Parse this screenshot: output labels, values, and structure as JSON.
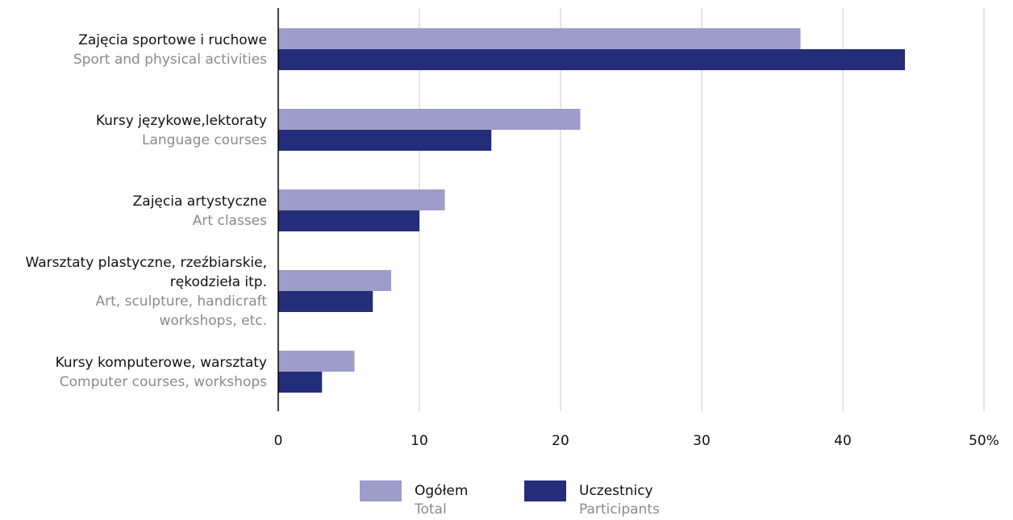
{
  "chart_data": {
    "type": "bar",
    "orientation": "horizontal",
    "categories": [
      {
        "label_pl": [
          "Zajęcia sportowe i ruchowe"
        ],
        "label_en": [
          "Sport and physical activities"
        ]
      },
      {
        "label_pl": [
          "Kursy językowe,lektoraty"
        ],
        "label_en": [
          "Language courses"
        ]
      },
      {
        "label_pl": [
          "Zajęcia artystyczne"
        ],
        "label_en": [
          "Art classes"
        ]
      },
      {
        "label_pl": [
          "Warsztaty plastyczne, rzeźbiarskie,",
          "rękodzieła itp."
        ],
        "label_en": [
          "Art, sculpture, handicraft",
          "workshops, etc."
        ]
      },
      {
        "label_pl": [
          "Kursy komputerowe, warsztaty"
        ],
        "label_en": [
          "Computer courses, workshops"
        ]
      }
    ],
    "series": [
      {
        "name": "Ogółem",
        "name_en": "Total",
        "color": "#9e9cc9",
        "values": [
          37.0,
          21.4,
          11.8,
          8.0,
          5.4
        ]
      },
      {
        "name": "Uczestnicy",
        "name_en": "Participants",
        "color": "#232d7a",
        "values": [
          44.4,
          15.1,
          10.0,
          6.7,
          3.1
        ]
      }
    ],
    "xlim": [
      0,
      50
    ],
    "xticks": [
      0,
      10,
      20,
      30,
      40,
      50
    ],
    "xtick_labels": [
      "0",
      "10",
      "20",
      "30",
      "40",
      "50%"
    ],
    "grid": true,
    "legend_position": "bottom-center",
    "gridline_color": "#c8c8c8",
    "axis_color": "#000000"
  }
}
